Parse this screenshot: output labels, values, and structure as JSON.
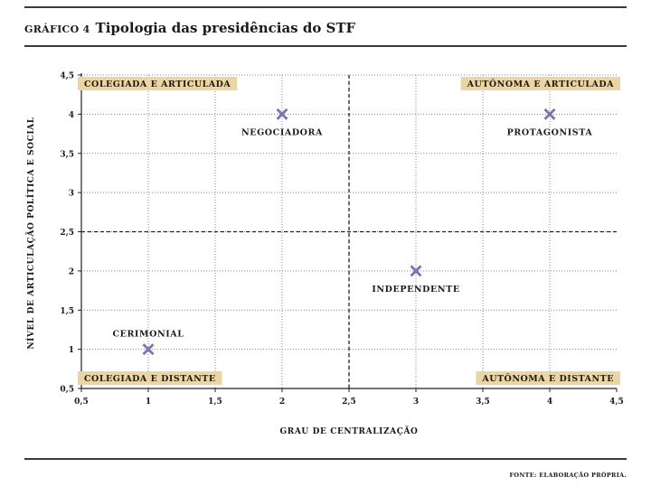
{
  "header": {
    "label": "GRÁFICO 4",
    "title": "Tipologia das presidências do STF"
  },
  "source": "FONTE: ELABORAÇÃO PRÓPRIA.",
  "chart_data": {
    "type": "scatter",
    "xlabel": "GRAU DE CENTRALIZAÇÃO",
    "ylabel": "NÍVEL DE ARTICULAÇÃO POLÍTICA E SOCIAL",
    "xlim": [
      0.5,
      4.5
    ],
    "ylim": [
      0.5,
      4.5
    ],
    "xticks": [
      "0,5",
      "1",
      "1,5",
      "2",
      "2,5",
      "3",
      "3,5",
      "4",
      "4,5"
    ],
    "yticks": [
      "0,5",
      "1",
      "1,5",
      "2",
      "2,5",
      "3",
      "3,5",
      "4",
      "4,5"
    ],
    "grid": "dotted",
    "reference_lines": {
      "x": 2.5,
      "y": 2.5,
      "style": "dashed"
    },
    "quadrants": [
      {
        "label": "COLEGIADA E ARTICULADA",
        "position": "top-left"
      },
      {
        "label": "AUTÔNOMA E ARTICULADA",
        "position": "top-right"
      },
      {
        "label": "COLEGIADA E DISTANTE",
        "position": "bottom-left"
      },
      {
        "label": "AUTÔNOMA E DISTANTE",
        "position": "bottom-right"
      }
    ],
    "points": [
      {
        "label": "CERIMONIAL",
        "x": 1,
        "y": 1,
        "label_position": "above"
      },
      {
        "label": "NEGOCIADORA",
        "x": 2,
        "y": 4,
        "label_position": "below"
      },
      {
        "label": "INDEPENDENTE",
        "x": 3,
        "y": 2,
        "label_position": "below"
      },
      {
        "label": "PROTAGONISTA",
        "x": 4,
        "y": 4,
        "label_position": "below"
      }
    ],
    "colors": {
      "marker": "#7c74b0",
      "quadrant_label_bg": "#ecd5a4"
    }
  }
}
